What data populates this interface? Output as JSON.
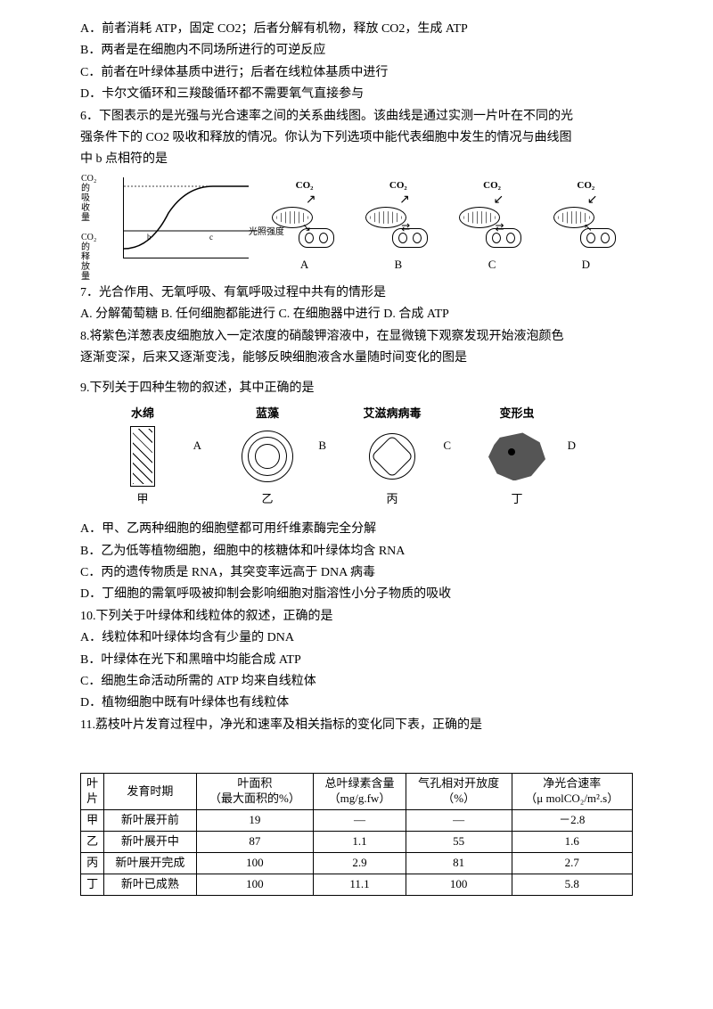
{
  "q5_options": {
    "A": "A．前者消耗 ATP，固定 CO2；后者分解有机物，释放 CO2，生成 ATP",
    "B": "B．两者是在细胞内不同场所进行的可逆反应",
    "C": "C．前者在叶绿体基质中进行；后者在线粒体基质中进行",
    "D": "D．卡尔文循环和三羧酸循环都不需要氧气直接参与"
  },
  "q6": {
    "stem1": "6．下图表示的是光强与光合速率之间的关系曲线图。该曲线是通过实测一片叶在不同的光",
    "stem2": "强条件下的 CO2 吸收和释放的情况。你认为下列选项中能代表细胞中发生的情况与曲线图",
    "stem3": "中 b 点相符的是",
    "ylabel_top": "CO₂\n的\n吸\n收\n量",
    "ylabel_bottom": "CO₂\n的\n释\n放\n量",
    "xlabel": "光照强度",
    "co2_label": "CO₂",
    "opts": [
      "A",
      "B",
      "C",
      "D"
    ]
  },
  "q7": {
    "stem": "7．光合作用、无氧呼吸、有氧呼吸过程中共有的情形是",
    "opts": "A. 分解葡萄糖  B. 任何细胞都能进行  C. 在细胞器中进行  D. 合成 ATP"
  },
  "q8": {
    "stem1": "8.将紫色洋葱表皮细胞放入一定浓度的硝酸钾溶液中，在显微镜下观察发现开始液泡颜色",
    "stem2": "逐渐变深，后来又逐渐变浅，能够反映细胞液含水量随时间变化的图是"
  },
  "q9": {
    "stem": "9.下列关于四种生物的叙述，其中正确的是",
    "labels_top": [
      "水绵",
      "蓝藻",
      "艾滋病病毒",
      "变形虫"
    ],
    "labels_bottom": [
      "甲",
      "乙",
      "丙",
      "丁"
    ],
    "side_letters": [
      "A",
      "B",
      "C",
      "D"
    ],
    "opts": {
      "A": "A．甲、乙两种细胞的细胞壁都可用纤维素酶完全分解",
      "B": "B．乙为低等植物细胞，细胞中的核糖体和叶绿体均含 RNA",
      "C": "C．丙的遗传物质是 RNA，其突变率远高于 DNA 病毒",
      "D": "D．丁细胞的需氧呼吸被抑制会影响细胞对脂溶性小分子物质的吸收"
    }
  },
  "q10": {
    "stem": "10.下列关于叶绿体和线粒体的叙述，正确的是",
    "opts": {
      "A": "A．线粒体和叶绿体均含有少量的 DNA",
      "B": "B．叶绿体在光下和黑暗中均能合成 ATP",
      "C": "C．细胞生命活动所需的 ATP 均来自线粒体",
      "D": "D．植物细胞中既有叶绿体也有线粒体"
    }
  },
  "q11": {
    "stem": "11.荔枝叶片发育过程中，净光和速率及相关指标的变化同下表，正确的是"
  },
  "table": {
    "headers": [
      "叶\n片",
      "发育时期",
      "叶面积\n（最大面积的%）",
      "总叶绿素含量\n（mg/g.fw）",
      "气孔相对开放度\n（%）",
      "净光合速率\n（μ molCO₂/m².s）"
    ],
    "rows": [
      [
        "甲",
        "新叶展开前",
        "19",
        "—",
        "—",
        "－2.8"
      ],
      [
        "乙",
        "新叶展开中",
        "87",
        "1.1",
        "55",
        "1.6"
      ],
      [
        "丙",
        "新叶展开完成",
        "100",
        "2.9",
        "81",
        "2.7"
      ],
      [
        "丁",
        "新叶已成熟",
        "100",
        "11.1",
        "100",
        "5.8"
      ]
    ]
  }
}
